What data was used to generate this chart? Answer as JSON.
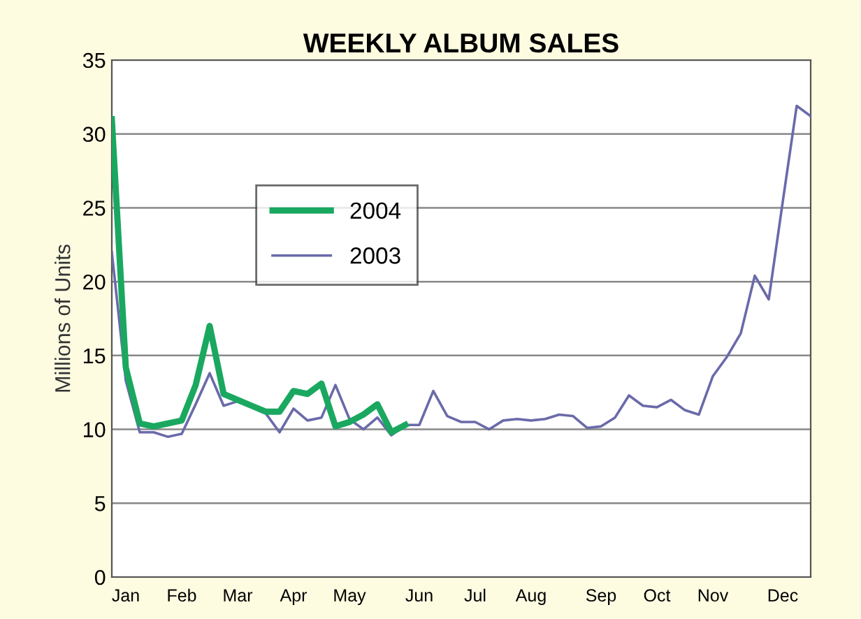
{
  "chart_data": {
    "type": "line",
    "title": "WEEKLY ALBUM SALES",
    "ylabel": "Millions of Units",
    "categories": [
      null,
      "Jan",
      null,
      null,
      null,
      "Feb",
      null,
      null,
      null,
      "Mar",
      null,
      null,
      null,
      "Apr",
      null,
      null,
      null,
      "May",
      null,
      null,
      null,
      null,
      "Jun",
      null,
      null,
      null,
      "Jul",
      null,
      null,
      null,
      "Aug",
      null,
      null,
      null,
      null,
      "Sep",
      null,
      null,
      null,
      "Oct",
      null,
      null,
      null,
      "Nov",
      null,
      null,
      null,
      null,
      "Dec",
      null,
      null
    ],
    "series": [
      {
        "name": "2004",
        "color": "#1aa860",
        "values": [
          31,
          14.2,
          10.4,
          10.2,
          10.4,
          10.6,
          13,
          17,
          12.4,
          12,
          11.6,
          11.2,
          11.2,
          12.6,
          12.4,
          13.1,
          10.2,
          10.5,
          11,
          11.7,
          9.8,
          10.3,
          null,
          null,
          null,
          null,
          null,
          null,
          null,
          null,
          null,
          null,
          null,
          null,
          null,
          null,
          null,
          null,
          null,
          null,
          null,
          null,
          null,
          null,
          null,
          null,
          null,
          null,
          null,
          null,
          null
        ]
      },
      {
        "name": "2003",
        "color": "#6a6aaa",
        "values": [
          22,
          13.3,
          9.8,
          9.8,
          9.5,
          9.7,
          11.7,
          13.8,
          11.6,
          11.9,
          11.5,
          11.1,
          9.8,
          11.4,
          10.6,
          10.8,
          13,
          10.7,
          10,
          10.8,
          9.6,
          10.3,
          10.3,
          12.6,
          10.9,
          10.5,
          10.5,
          10,
          10.6,
          10.7,
          10.6,
          10.7,
          11,
          10.9,
          10.1,
          10.2,
          10.8,
          12.3,
          11.6,
          11.5,
          12,
          11.3,
          11,
          13.6,
          14.9,
          16.5,
          20.4,
          18.8,
          25.4,
          31.9,
          31.2
        ]
      }
    ],
    "ylim": [
      0,
      35
    ],
    "yticks": [
      0,
      5,
      10,
      15,
      20,
      25,
      30,
      35
    ],
    "grid": "y",
    "legend": "top left",
    "marker": "none",
    "line_style": "solid"
  }
}
